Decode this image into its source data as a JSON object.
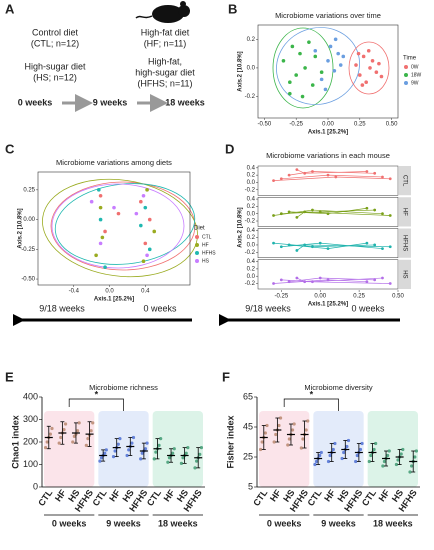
{
  "panel_a": {
    "label": "A",
    "diets": [
      "Control diet",
      "(CTL; n=12)",
      "High-fat diet",
      "(HF; n=11)",
      "High-sugar diet",
      "(HS; n=12)",
      "High-fat,",
      "high-sugar diet",
      "(HFHS; n=11)"
    ],
    "timeline": [
      "0 weeks",
      "9 weeks",
      "18 weeks"
    ]
  },
  "arrows": {
    "left": "9/18 weeks",
    "right": "0 weeks"
  },
  "chart_data": [
    {
      "type": "scatter",
      "panel": "B",
      "title": "Microbiome variations over time",
      "x_label": "Axis.1   [25.2%]",
      "y_label": "Axis.2   [10.8%]",
      "legend_title": "Time",
      "xlim": [
        -0.55,
        0.55
      ],
      "ylim": [
        -0.35,
        0.3
      ],
      "xticks": [
        {
          "value": -0.5,
          "label": "-0.50"
        },
        -0.25,
        {
          "value": 0,
          "label": "0.00"
        },
        0.25,
        {
          "value": 0.5,
          "label": "0.50"
        }
      ],
      "yticks": [
        -0.2,
        {
          "value": 0,
          "label": "0.0"
        },
        0.2
      ],
      "series": [
        {
          "name": "0W",
          "color": "#f07070",
          "x": [
            0.22,
            0.25,
            0.28,
            0.3,
            0.33,
            0.35,
            0.38,
            0.4,
            0.27,
            0.32,
            0.42,
            0.24
          ],
          "y": [
            0.02,
            -0.05,
            0.08,
            -0.1,
            0,
            0.05,
            -0.03,
            0.03,
            -0.12,
            0.12,
            -0.06,
            0.1
          ]
        },
        {
          "name": "18W",
          "color": "#3bb54a",
          "x": [
            -0.35,
            -0.3,
            -0.28,
            -0.25,
            -0.22,
            -0.2,
            -0.18,
            -0.15,
            -0.12,
            -0.1,
            -0.05,
            -0.3
          ],
          "y": [
            0.05,
            -0.1,
            0.15,
            -0.05,
            0.1,
            -0.2,
            0,
            0.18,
            -0.12,
            0.08,
            -0.03,
            -0.18
          ]
        },
        {
          "name": "9W",
          "color": "#6a9ee0",
          "x": [
            -0.1,
            -0.05,
            0,
            0.02,
            0.05,
            0.08,
            0.1,
            0.12,
            -0.02,
            0.06
          ],
          "y": [
            0.12,
            -0.08,
            0.05,
            0.15,
            -0.02,
            0.1,
            0.02,
            0.08,
            -0.15,
            0.2
          ]
        }
      ]
    },
    {
      "type": "scatter",
      "panel": "C",
      "title": "Microbiome variations among diets",
      "x_label": "Axis.1   [25.2%]",
      "y_label": "Axis.2   [10.8%]",
      "legend_title": "Diet",
      "xlim": [
        -0.8,
        0.9
      ],
      "ylim": [
        -0.55,
        0.4
      ],
      "xticks": [
        -0.4,
        {
          "value": 0,
          "label": "0.0"
        },
        0.4
      ],
      "yticks": [
        {
          "value": -0.5,
          "label": "-0.50"
        },
        -0.25,
        {
          "value": 0,
          "label": "0.00"
        },
        0.25
      ],
      "series": [
        {
          "name": "CTL",
          "color": "#f07070",
          "x": [
            -0.1,
            -0.05,
            0.35,
            0.4,
            0.1,
            0.45
          ],
          "y": [
            0.2,
            -0.1,
            0.15,
            -0.2,
            0.05,
            0
          ]
        },
        {
          "name": "HF",
          "color": "#9aab20",
          "x": [
            -0.15,
            -0.1,
            0.38,
            0.42,
            -0.08,
            0.5
          ],
          "y": [
            -0.3,
            0.1,
            -0.35,
            0.25,
            -0.15,
            -0.1
          ]
        },
        {
          "name": "HFHS",
          "color": "#20b8b0",
          "x": [
            -0.12,
            0.4,
            -0.05,
            0.35,
            0.45,
            -0.1
          ],
          "y": [
            0.25,
            0.1,
            -0.4,
            -0.05,
            -0.25,
            0
          ]
        },
        {
          "name": "HS",
          "color": "#c77dff",
          "x": [
            -0.2,
            0.38,
            -0.1,
            0.42,
            0.05,
            0.3
          ],
          "y": [
            0.15,
            0.2,
            -0.2,
            -0.3,
            0.1,
            0.05
          ]
        }
      ]
    },
    {
      "type": "trajectory",
      "panel": "D",
      "title": "Microbiome variations in each mouse",
      "x_label": "Axis.1   [25.2%]",
      "y_label": "Axis.2   [10.8%]",
      "xlim": [
        -0.4,
        0.5
      ],
      "ylim": [
        -0.35,
        0.45
      ],
      "xticks": [
        -0.25,
        {
          "value": 0,
          "label": "0.00"
        },
        0.25,
        {
          "value": 0.5,
          "label": "0.50"
        }
      ],
      "yticks": [
        -0.2,
        {
          "value": 0,
          "label": "0.0"
        },
        0.2,
        0.4
      ],
      "facets": [
        {
          "name": "CTL",
          "color": "#f07070",
          "mice": [
            {
              "x": [
                0.35,
                -0.05,
                -0.2
              ],
              "y": [
                0.25,
                0.3,
                0.2
              ]
            },
            {
              "x": [
                0.4,
                0.05,
                -0.25
              ],
              "y": [
                0.15,
                0.2,
                0.1
              ]
            },
            {
              "x": [
                0.3,
                -0.1,
                -0.15
              ],
              "y": [
                0.3,
                0.25,
                0.35
              ]
            },
            {
              "x": [
                0.45,
                0.1,
                -0.3
              ],
              "y": [
                0.1,
                0.15,
                0.05
              ]
            }
          ]
        },
        {
          "name": "HF",
          "color": "#7aa019",
          "mice": [
            {
              "x": [
                0.35,
                0,
                -0.25
              ],
              "y": [
                0.1,
                0.05,
                0
              ]
            },
            {
              "x": [
                0.4,
                -0.05,
                -0.3
              ],
              "y": [
                0,
                0.1,
                -0.05
              ]
            },
            {
              "x": [
                0.3,
                0.05,
                -0.2
              ],
              "y": [
                0.15,
                0,
                0.05
              ]
            },
            {
              "x": [
                0.45,
                -0.1,
                -0.15
              ],
              "y": [
                -0.05,
                0.05,
                -0.1
              ]
            }
          ]
        },
        {
          "name": "HFHS",
          "color": "#1fb3ad",
          "mice": [
            {
              "x": [
                0.35,
                -0.05,
                -0.3
              ],
              "y": [
                0,
                -0.05,
                0.05
              ]
            },
            {
              "x": [
                0.4,
                0,
                -0.25
              ],
              "y": [
                -0.1,
                0.05,
                -0.05
              ]
            },
            {
              "x": [
                0.3,
                0.05,
                -0.2
              ],
              "y": [
                0.05,
                -0.1,
                0
              ]
            },
            {
              "x": [
                0.45,
                -0.1,
                -0.15
              ],
              "y": [
                -0.05,
                0,
                -0.15
              ]
            }
          ]
        },
        {
          "name": "HS",
          "color": "#b36ee8",
          "mice": [
            {
              "x": [
                0.35,
                0,
                -0.2
              ],
              "y": [
                -0.1,
                -0.05,
                -0.15
              ]
            },
            {
              "x": [
                0.4,
                -0.05,
                -0.25
              ],
              "y": [
                -0.05,
                -0.15,
                -0.1
              ]
            },
            {
              "x": [
                0.3,
                0.05,
                -0.3
              ],
              "y": [
                -0.15,
                -0.1,
                -0.2
              ]
            },
            {
              "x": [
                0.45,
                -0.1,
                -0.15
              ],
              "y": [
                -0.2,
                -0.15,
                -0.05
              ]
            }
          ]
        }
      ]
    },
    {
      "type": "dotplot",
      "panel": "E",
      "title": "Microbiome richness",
      "y_label": "Chao1 index",
      "annotation": "*",
      "ylim": [
        0,
        400
      ],
      "yticks": [
        0,
        100,
        200,
        300,
        400
      ],
      "categories": [
        "CTL",
        "HF",
        "HS",
        "HFHS",
        "CTL",
        "HF",
        "HS",
        "HFHS",
        "CTL",
        "HF",
        "HS",
        "HFHS"
      ],
      "group_labels": [
        "0 weeks",
        "9 weeks",
        "18 weeks"
      ],
      "group_colors": [
        "#b9876f",
        "#4d70d4",
        "#3f9a72"
      ],
      "means": [
        220,
        240,
        240,
        235,
        140,
        175,
        180,
        160,
        170,
        140,
        140,
        130
      ],
      "sd": [
        50,
        50,
        45,
        55,
        25,
        40,
        40,
        35,
        45,
        30,
        35,
        45
      ],
      "points": [
        [
          175,
          200,
          220,
          235,
          260
        ],
        [
          195,
          220,
          240,
          255,
          280
        ],
        [
          200,
          225,
          235,
          250,
          285
        ],
        [
          185,
          215,
          230,
          250,
          285
        ],
        [
          115,
          130,
          140,
          150,
          165
        ],
        [
          135,
          160,
          175,
          190,
          215
        ],
        [
          140,
          165,
          180,
          195,
          220
        ],
        [
          125,
          150,
          160,
          170,
          195
        ],
        [
          125,
          155,
          170,
          185,
          215
        ],
        [
          110,
          130,
          140,
          150,
          170
        ],
        [
          105,
          130,
          140,
          150,
          175
        ],
        [
          85,
          115,
          130,
          145,
          175
        ]
      ]
    },
    {
      "type": "dotplot",
      "panel": "F",
      "title": "Microbiome diversity",
      "y_label": "Fisher index",
      "annotation": "*",
      "ylim": [
        5,
        65
      ],
      "yticks": [
        5,
        25,
        45,
        65
      ],
      "categories": [
        "CTL",
        "HF",
        "HS",
        "HFHS",
        "CTL",
        "HF",
        "HS",
        "HFHS",
        "CTL",
        "HF",
        "HS",
        "HFHS"
      ],
      "group_labels": [
        "0 weeks",
        "9 weeks",
        "18 weeks"
      ],
      "group_colors": [
        "#b9876f",
        "#4d70d4",
        "#3f9a72"
      ],
      "means": [
        38,
        43,
        40,
        40,
        24,
        28,
        30,
        28,
        28,
        24,
        25,
        22
      ],
      "sd": [
        8,
        8,
        7,
        9,
        4,
        6,
        6,
        6,
        6,
        5,
        5,
        7
      ],
      "points": [
        [
          30,
          35,
          38,
          41,
          46
        ],
        [
          35,
          40,
          43,
          46,
          51
        ],
        [
          33,
          37,
          40,
          43,
          47
        ],
        [
          31,
          37,
          40,
          43,
          49
        ],
        [
          20,
          22,
          24,
          26,
          28
        ],
        [
          22,
          26,
          28,
          30,
          34
        ],
        [
          24,
          28,
          30,
          32,
          36
        ],
        [
          22,
          26,
          28,
          30,
          34
        ],
        [
          22,
          26,
          28,
          30,
          34
        ],
        [
          19,
          22,
          24,
          26,
          29
        ],
        [
          20,
          23,
          25,
          27,
          30
        ],
        [
          15,
          19,
          22,
          25,
          29
        ]
      ]
    }
  ]
}
